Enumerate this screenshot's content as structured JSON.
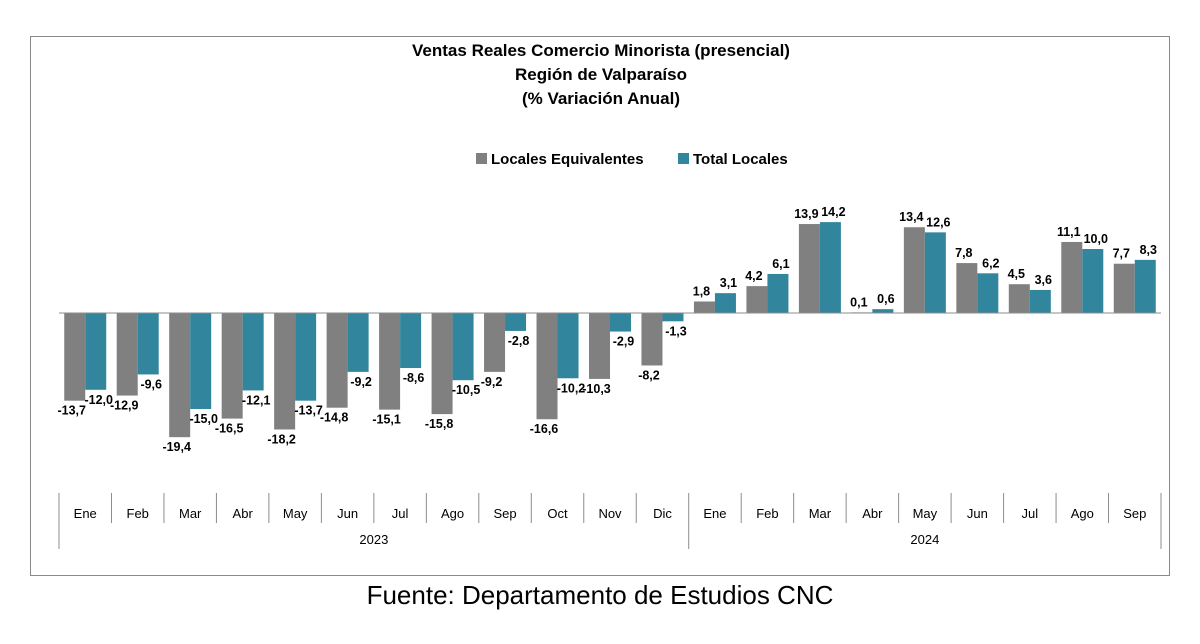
{
  "chart_data": {
    "type": "bar",
    "title": [
      "Ventas Reales Comercio Minorista (presencial)",
      "Región de Valparaíso",
      "(% Variación Anual)"
    ],
    "categories": [
      "Ene",
      "Feb",
      "Mar",
      "Abr",
      "May",
      "Jun",
      "Jul",
      "Ago",
      "Sep",
      "Oct",
      "Nov",
      "Dic",
      "Ene",
      "Feb",
      "Mar",
      "Abr",
      "May",
      "Jun",
      "Jul",
      "Ago",
      "Sep"
    ],
    "groups": [
      {
        "label": "2023",
        "start": 0,
        "end": 11
      },
      {
        "label": "2024",
        "start": 12,
        "end": 20
      }
    ],
    "series": [
      {
        "name": "Locales Equivalentes",
        "color": "#808080",
        "values": [
          -13.7,
          -12.9,
          -19.4,
          -16.5,
          -18.2,
          -14.8,
          -15.1,
          -15.8,
          -9.2,
          -16.6,
          -10.3,
          -8.2,
          1.8,
          4.2,
          13.9,
          0.1,
          13.4,
          7.8,
          4.5,
          11.1,
          7.7
        ],
        "labels": [
          "-13,7",
          "-12,9",
          "-19,4",
          "-16,5",
          "-18,2",
          "-14,8",
          "-15,1",
          "-15,8",
          "-9,2",
          "-16,6",
          "-10,3",
          "-8,2",
          "1,8",
          "4,2",
          "13,9",
          "0,1",
          "13,4",
          "7,8",
          "4,5",
          "11,1",
          "7,7"
        ]
      },
      {
        "name": "Total Locales",
        "color": "#31859c",
        "values": [
          -12.0,
          -9.6,
          -15.0,
          -12.1,
          -13.7,
          -9.2,
          -8.6,
          -10.5,
          -2.8,
          -10.2,
          -2.9,
          -1.3,
          3.1,
          6.1,
          14.2,
          0.6,
          12.6,
          6.2,
          3.6,
          10.0,
          8.3
        ],
        "labels": [
          "-12,0",
          "-9,6",
          "-15,0",
          "-12,1",
          "-13,7",
          "-9,2",
          "-8,6",
          "-10,5",
          "-2,8",
          "-10,2",
          "-2,9",
          "-1,3",
          "3,1",
          "6,1",
          "14,2",
          "0,6",
          "12,6",
          "6,2",
          "3,6",
          "10,0",
          "8,3"
        ]
      }
    ],
    "ylim": [
      -20,
      15
    ],
    "legend_position": "top-center",
    "grid": false
  },
  "footer": {
    "source": "Fuente: Departamento de Estudios CNC"
  }
}
